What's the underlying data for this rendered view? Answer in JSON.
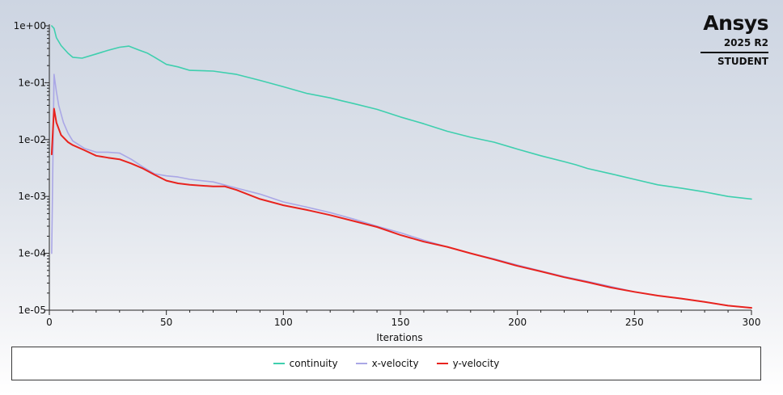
{
  "logo": {
    "name": "Ansys",
    "version": "2025 R2",
    "edition": "STUDENT"
  },
  "chart_data": {
    "type": "line",
    "title": "",
    "xlabel": "Iterations",
    "ylabel": "",
    "xlim": [
      0,
      300
    ],
    "ylim": [
      1e-05,
      1
    ],
    "yscale": "log",
    "grid": false,
    "legend_position": "bottom",
    "x_ticks": [
      "0",
      "50",
      "100",
      "150",
      "200",
      "250",
      "300"
    ],
    "y_ticks": [
      "1e-05",
      "1e-04",
      "1e-03",
      "1e-02",
      "1e-01",
      "1e+00"
    ],
    "series": [
      {
        "name": "continuity",
        "color": "#3fcfae",
        "points": [
          [
            1,
            1.0
          ],
          [
            2,
            0.9
          ],
          [
            3,
            0.62
          ],
          [
            5,
            0.45
          ],
          [
            8,
            0.33
          ],
          [
            10,
            0.28
          ],
          [
            14,
            0.27
          ],
          [
            20,
            0.32
          ],
          [
            25,
            0.37
          ],
          [
            30,
            0.42
          ],
          [
            34,
            0.44
          ],
          [
            38,
            0.38
          ],
          [
            42,
            0.33
          ],
          [
            45,
            0.28
          ],
          [
            50,
            0.21
          ],
          [
            55,
            0.19
          ],
          [
            60,
            0.165
          ],
          [
            70,
            0.16
          ],
          [
            80,
            0.14
          ],
          [
            90,
            0.11
          ],
          [
            100,
            0.085
          ],
          [
            110,
            0.065
          ],
          [
            120,
            0.054
          ],
          [
            125,
            0.048
          ],
          [
            130,
            0.043
          ],
          [
            140,
            0.034
          ],
          [
            150,
            0.025
          ],
          [
            160,
            0.019
          ],
          [
            170,
            0.014
          ],
          [
            180,
            0.011
          ],
          [
            190,
            0.009
          ],
          [
            200,
            0.0068
          ],
          [
            210,
            0.0052
          ],
          [
            220,
            0.0041
          ],
          [
            225,
            0.0036
          ],
          [
            230,
            0.0031
          ],
          [
            240,
            0.0025
          ],
          [
            250,
            0.002
          ],
          [
            260,
            0.0016
          ],
          [
            270,
            0.0014
          ],
          [
            280,
            0.0012
          ],
          [
            290,
            0.001
          ],
          [
            300,
            0.0009
          ]
        ]
      },
      {
        "name": "x-velocity",
        "color": "#aaa7e6",
        "points": [
          [
            1,
            0.0001
          ],
          [
            2,
            0.14
          ],
          [
            3,
            0.07
          ],
          [
            4,
            0.04
          ],
          [
            6,
            0.02
          ],
          [
            8,
            0.013
          ],
          [
            10,
            0.0095
          ],
          [
            15,
            0.007
          ],
          [
            20,
            0.006
          ],
          [
            25,
            0.006
          ],
          [
            30,
            0.0058
          ],
          [
            35,
            0.0045
          ],
          [
            40,
            0.0033
          ],
          [
            45,
            0.0025
          ],
          [
            50,
            0.0023
          ],
          [
            55,
            0.0022
          ],
          [
            60,
            0.002
          ],
          [
            70,
            0.0018
          ],
          [
            80,
            0.0014
          ],
          [
            90,
            0.0011
          ],
          [
            100,
            0.0008
          ],
          [
            110,
            0.00065
          ],
          [
            120,
            0.00052
          ],
          [
            130,
            0.0004
          ],
          [
            140,
            0.0003
          ],
          [
            150,
            0.00023
          ],
          [
            160,
            0.00017
          ],
          [
            170,
            0.00013
          ],
          [
            180,
            0.0001
          ],
          [
            190,
            8e-05
          ],
          [
            200,
            6.2e-05
          ],
          [
            210,
            4.9e-05
          ],
          [
            220,
            3.9e-05
          ],
          [
            230,
            3.2e-05
          ],
          [
            240,
            2.6e-05
          ],
          [
            250,
            2.1e-05
          ],
          [
            260,
            1.8e-05
          ],
          [
            270,
            1.6e-05
          ],
          [
            280,
            1.4e-05
          ],
          [
            290,
            1.2e-05
          ],
          [
            300,
            1.1e-05
          ]
        ]
      },
      {
        "name": "y-velocity",
        "color": "#e8231e",
        "points": [
          [
            1,
            0.0055
          ],
          [
            2,
            0.035
          ],
          [
            3,
            0.02
          ],
          [
            5,
            0.012
          ],
          [
            8,
            0.009
          ],
          [
            10,
            0.008
          ],
          [
            15,
            0.0065
          ],
          [
            20,
            0.0052
          ],
          [
            25,
            0.0048
          ],
          [
            30,
            0.0045
          ],
          [
            35,
            0.0038
          ],
          [
            40,
            0.0031
          ],
          [
            45,
            0.0024
          ],
          [
            50,
            0.0019
          ],
          [
            55,
            0.0017
          ],
          [
            60,
            0.0016
          ],
          [
            70,
            0.0015
          ],
          [
            75,
            0.0015
          ],
          [
            80,
            0.0013
          ],
          [
            90,
            0.0009
          ],
          [
            100,
            0.0007
          ],
          [
            110,
            0.00058
          ],
          [
            120,
            0.00047
          ],
          [
            130,
            0.00037
          ],
          [
            140,
            0.00029
          ],
          [
            150,
            0.00021
          ],
          [
            160,
            0.00016
          ],
          [
            170,
            0.00013
          ],
          [
            180,
            0.0001
          ],
          [
            190,
            7.8e-05
          ],
          [
            200,
            6e-05
          ],
          [
            210,
            4.8e-05
          ],
          [
            220,
            3.8e-05
          ],
          [
            230,
            3.1e-05
          ],
          [
            240,
            2.5e-05
          ],
          [
            250,
            2.1e-05
          ],
          [
            260,
            1.8e-05
          ],
          [
            270,
            1.6e-05
          ],
          [
            280,
            1.4e-05
          ],
          [
            290,
            1.2e-05
          ],
          [
            300,
            1.1e-05
          ]
        ]
      }
    ]
  }
}
